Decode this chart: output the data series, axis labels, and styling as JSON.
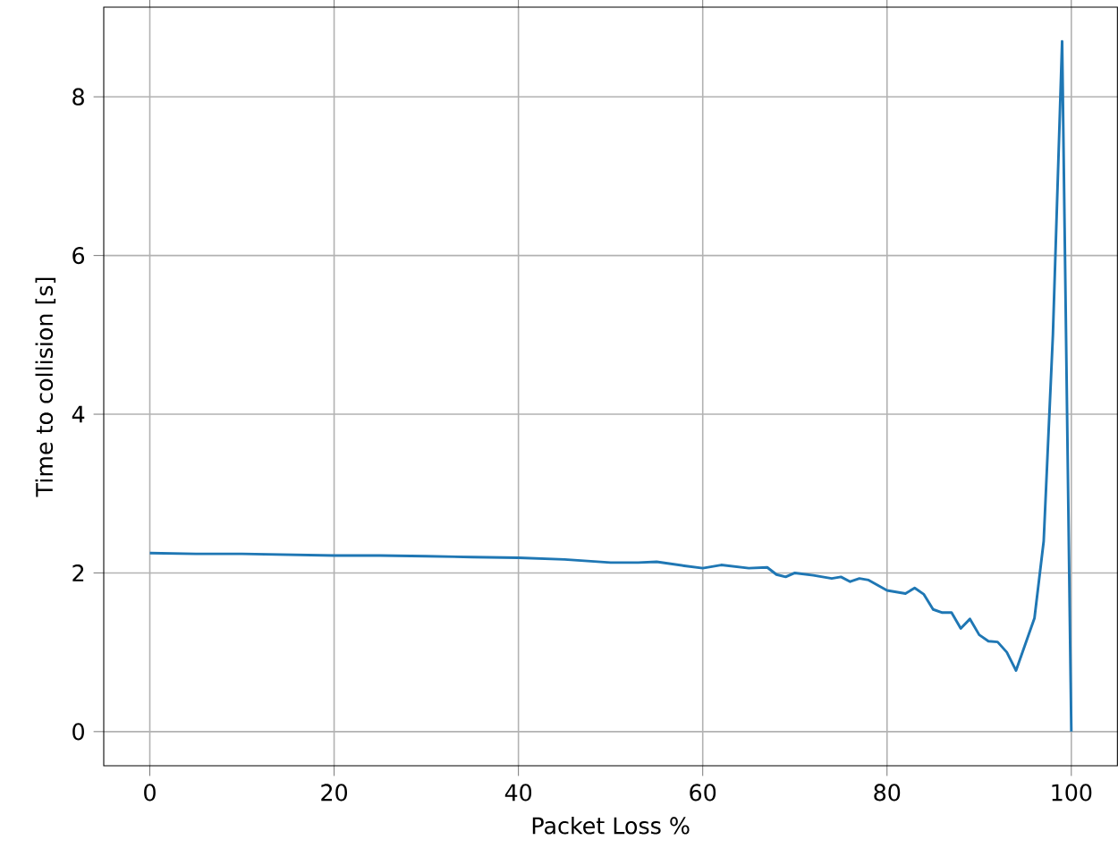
{
  "chart_data": {
    "type": "line",
    "xlabel": "Packet Loss %",
    "ylabel": "Time to collision [s]",
    "x": [
      0,
      5,
      10,
      15,
      20,
      25,
      30,
      35,
      40,
      45,
      50,
      53,
      55,
      58,
      60,
      62,
      65,
      67,
      68,
      69,
      70,
      72,
      74,
      75,
      76,
      77,
      78,
      80,
      82,
      83,
      84,
      85,
      86,
      87,
      88,
      89,
      90,
      91,
      92,
      93,
      94,
      95,
      96,
      97,
      98,
      99,
      100
    ],
    "series": [
      {
        "color": "#1f77b4",
        "values": [
          2.25,
          2.24,
          2.24,
          2.23,
          2.22,
          2.22,
          2.21,
          2.2,
          2.19,
          2.17,
          2.13,
          2.13,
          2.14,
          2.09,
          2.06,
          2.1,
          2.06,
          2.07,
          1.98,
          1.95,
          2.0,
          1.97,
          1.93,
          1.95,
          1.89,
          1.93,
          1.91,
          1.78,
          1.74,
          1.81,
          1.73,
          1.54,
          1.5,
          1.5,
          1.3,
          1.42,
          1.22,
          1.14,
          1.13,
          1.0,
          0.77,
          1.1,
          1.43,
          2.4,
          5.0,
          8.7,
          0.0
        ]
      }
    ],
    "xlim": [
      -5,
      105
    ],
    "ylim": [
      -0.43,
      9.13
    ],
    "xticks": [
      0,
      20,
      40,
      60,
      80,
      100
    ],
    "yticks": [
      0,
      2,
      4,
      6,
      8
    ],
    "grid": true
  }
}
